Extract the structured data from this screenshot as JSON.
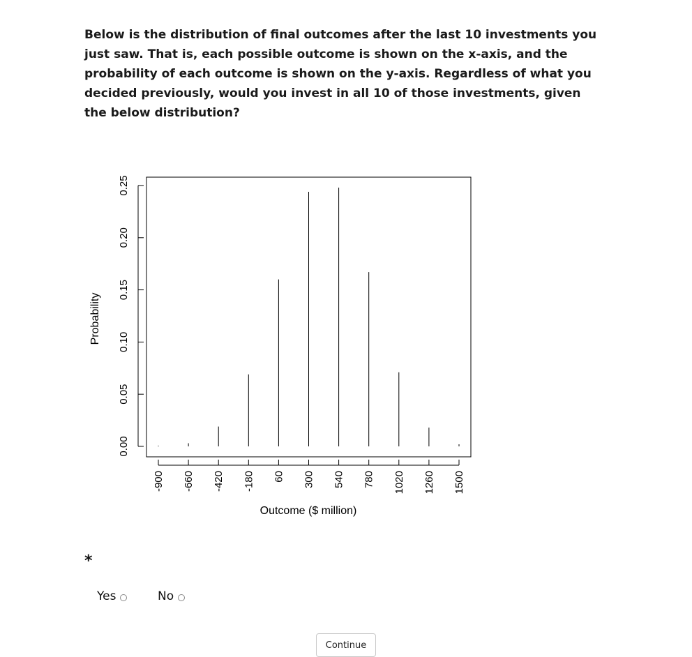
{
  "question": {
    "text": "Below is the distribution of final outcomes after the last 10 investments you just saw. That is, each possible outcome is shown on the x-axis, and the probability of each outcome is shown on the y-axis. Regardless of what you decided previously, would you invest in all 10 of those investments, given the below distribution?"
  },
  "required_marker": "*",
  "options": {
    "yes_label": "Yes",
    "no_label": "No",
    "selected": null
  },
  "continue_label": "Continue",
  "chart_data": {
    "type": "bar",
    "title": "",
    "xlabel": "Outcome ($ million)",
    "ylabel": "Probability",
    "categories": [
      "-900",
      "-660",
      "-420",
      "-180",
      "60",
      "300",
      "540",
      "780",
      "1020",
      "1260",
      "1500"
    ],
    "values": [
      0.0001,
      0.003,
      0.019,
      0.069,
      0.16,
      0.244,
      0.248,
      0.167,
      0.071,
      0.018,
      0.002
    ],
    "ylim": [
      0,
      0.25
    ],
    "yticks": [
      "0.00",
      "0.05",
      "0.10",
      "0.15",
      "0.20",
      "0.25"
    ],
    "grid": false
  }
}
